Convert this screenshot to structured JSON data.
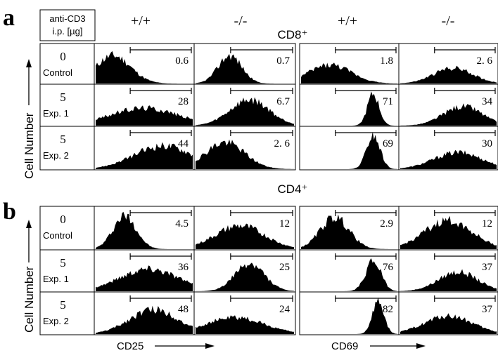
{
  "figure": {
    "panel_a": {
      "letter": "a",
      "legend_box": [
        "anti-CD3",
        "i.p. [µg]"
      ],
      "genotypes": [
        "+/+",
        "-/-",
        "+/+",
        "-/-"
      ],
      "subset": "CD8⁺",
      "rows": [
        {
          "dose": "0",
          "label": "Control",
          "values": [
            "0.6",
            "0.7",
            "1.8",
            "2. 6"
          ]
        },
        {
          "dose": "5",
          "label": "Exp. 1",
          "values": [
            "28",
            "6.7",
            "71",
            "34"
          ]
        },
        {
          "dose": "5",
          "label": "Exp. 2",
          "values": [
            "44",
            "2. 6",
            "69",
            "30"
          ]
        }
      ]
    },
    "panel_b": {
      "letter": "b",
      "subset": "CD4⁺",
      "rows": [
        {
          "dose": "0",
          "label": "Control",
          "values": [
            "4.5",
            "12",
            "2.9",
            "12"
          ]
        },
        {
          "dose": "5",
          "label": "Exp. 1",
          "values": [
            "36",
            "25",
            "76",
            "37"
          ]
        },
        {
          "dose": "5",
          "label": "Exp. 2",
          "values": [
            "48",
            "24",
            "82",
            "37"
          ]
        }
      ]
    },
    "y_axis_label": "Cell Number",
    "x_labels": [
      "CD25",
      "CD69"
    ]
  }
}
